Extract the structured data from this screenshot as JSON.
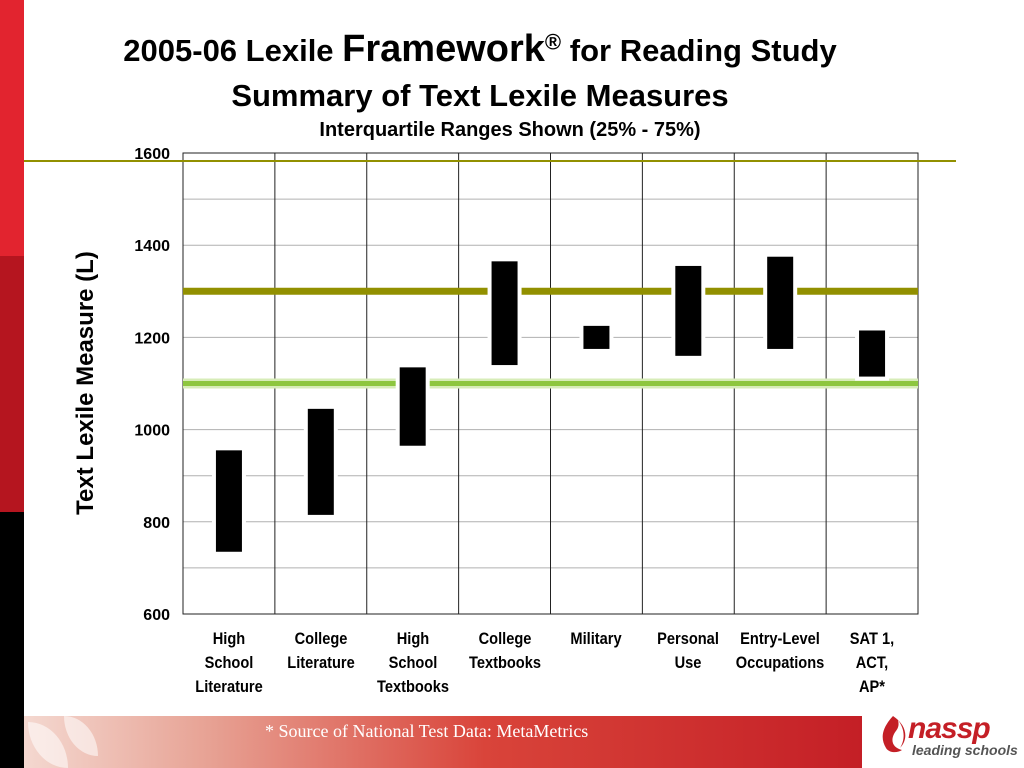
{
  "slide": {
    "title_part1": "2005-06 Lexile ",
    "title_framework": "Framework",
    "title_reg": "®",
    "title_part2": " for Reading Study",
    "title_line2": "Summary of Text Lexile Measures",
    "subtitle": "Interquartile Ranges Shown (25% - 75%)",
    "source_note": "* Source of National Test Data: MetaMetrics",
    "logo_text": "nassp",
    "logo_tagline": "leading schools"
  },
  "colors": {
    "accent_red": "#e2242f",
    "dark_red": "#b5151f",
    "olive_line": "#929000",
    "green_line": "#8dc63f",
    "bar": "#000000"
  },
  "chart_data": {
    "type": "floating-bar",
    "title": "",
    "xlabel": "",
    "ylabel": "Text Lexile Measure (L)",
    "ylim": [
      600,
      1600
    ],
    "yticks": [
      600,
      800,
      1000,
      1200,
      1400,
      1600
    ],
    "grid": true,
    "categories": [
      "High\nSchool\nLiterature",
      "College\nLiterature",
      "High\nSchool\nTextbooks",
      "College\nTextbooks",
      "Military",
      "Personal\nUse",
      "Entry-Level\nOccupations",
      "SAT 1,\nACT,\nAP*"
    ],
    "ranges": [
      {
        "low": 735,
        "high": 955
      },
      {
        "low": 815,
        "high": 1045
      },
      {
        "low": 965,
        "high": 1135
      },
      {
        "low": 1140,
        "high": 1365
      },
      {
        "low": 1175,
        "high": 1225
      },
      {
        "low": 1160,
        "high": 1355
      },
      {
        "low": 1175,
        "high": 1375
      },
      {
        "low": 1115,
        "high": 1215
      }
    ],
    "reference_lines": [
      {
        "value": 1600,
        "color": "#929000"
      },
      {
        "value": 1300,
        "color": "#929000"
      },
      {
        "value": 1100,
        "color": "#8dc63f"
      }
    ]
  }
}
